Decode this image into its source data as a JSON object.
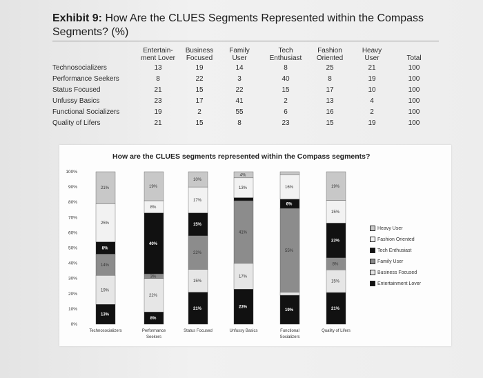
{
  "exhibit": {
    "title_prefix": "Exhibit 9:",
    "title_text": " How Are the CLUES Segments Represented within the Compass Segments? (%)"
  },
  "table": {
    "columns": [
      {
        "line1": "Entertain-",
        "line2": "ment Lover"
      },
      {
        "line1": "Business",
        "line2": "Focused"
      },
      {
        "line1": "Family",
        "line2": "User"
      },
      {
        "line1": "Tech",
        "line2": "Enthusiast"
      },
      {
        "line1": "Fashion",
        "line2": "Oriented"
      },
      {
        "line1": "Heavy",
        "line2": "User"
      },
      {
        "line1": "",
        "line2": "Total"
      }
    ],
    "rows": [
      {
        "label": "Technosocializers",
        "values": [
          "13",
          "19",
          "14",
          "8",
          "25",
          "21",
          "100"
        ]
      },
      {
        "label": "Performance Seekers",
        "values": [
          "8",
          "22",
          "3",
          "40",
          "8",
          "19",
          "100"
        ]
      },
      {
        "label": "Status Focused",
        "values": [
          "21",
          "15",
          "22",
          "15",
          "17",
          "10",
          "100"
        ]
      },
      {
        "label": "Unfussy Basics",
        "values": [
          "23",
          "17",
          "41",
          "2",
          "13",
          "4",
          "100"
        ]
      },
      {
        "label": "Functional Socializers",
        "values": [
          "19",
          "2",
          "55",
          "6",
          "16",
          "2",
          "100"
        ]
      },
      {
        "label": "Quality of Lifers",
        "values": [
          "21",
          "15",
          "8",
          "23",
          "15",
          "19",
          "100"
        ]
      }
    ]
  },
  "chart_data": {
    "type": "bar",
    "stacked": true,
    "title": "How are the CLUES segments represented within the Compass segments?",
    "categories": [
      "Technosocializers",
      "Performance Seekers",
      "Status Focused",
      "Unfussy Basics",
      "Functional Socializers",
      "Quality of Lifers"
    ],
    "category_lines": [
      [
        "Technosocializers"
      ],
      [
        "Performance",
        "Seekers"
      ],
      [
        "Status Focused"
      ],
      [
        "Unfussy Basics"
      ],
      [
        "Functional",
        "Socializers"
      ],
      [
        "Quality of Lifers"
      ]
    ],
    "series": [
      {
        "name": "Entertainment Lover",
        "color": "#111111",
        "values": [
          13,
          8,
          21,
          23,
          19,
          21
        ]
      },
      {
        "name": "Business Focused",
        "color": "#e6e6e6",
        "values": [
          19,
          22,
          15,
          17,
          2,
          15
        ]
      },
      {
        "name": "Family User",
        "color": "#8c8c8c",
        "values": [
          14,
          3,
          22,
          41,
          55,
          8
        ]
      },
      {
        "name": "Tech Enthusiast",
        "color": "#111111",
        "values": [
          8,
          40,
          15,
          2,
          6,
          23
        ]
      },
      {
        "name": "Fashion Oriented",
        "color": "#f2f2f2",
        "values": [
          25,
          8,
          17,
          13,
          16,
          15
        ]
      },
      {
        "name": "Heavy User",
        "color": "#c8c8c8",
        "values": [
          21,
          19,
          10,
          4,
          2,
          19
        ]
      }
    ],
    "data_labels": [
      [
        "13%",
        "8%",
        "21%",
        "23%",
        "19%",
        "21%"
      ],
      [
        "19%",
        "22%",
        "15%",
        "17%",
        "",
        "15%"
      ],
      [
        "14%",
        "3%",
        "22%",
        "41%",
        "55%",
        "8%"
      ],
      [
        "8%",
        "40%",
        "15%",
        "",
        "6%",
        "23%"
      ],
      [
        "25%",
        "8%",
        "17%",
        "13%",
        "16%",
        "15%"
      ],
      [
        "21%",
        "19%",
        "10%",
        "4%",
        "",
        "19%"
      ]
    ],
    "y_ticks": [
      "0%",
      "10%",
      "20%",
      "30%",
      "40%",
      "50%",
      "60%",
      "70%",
      "80%",
      "90%",
      "100%"
    ],
    "ylim": [
      0,
      100
    ],
    "legend_order": [
      "Heavy User",
      "Fashion Oriented",
      "Tech Enthusiast",
      "Family User",
      "Business Focused",
      "Entertainment Lover"
    ],
    "legend_position": "right"
  }
}
